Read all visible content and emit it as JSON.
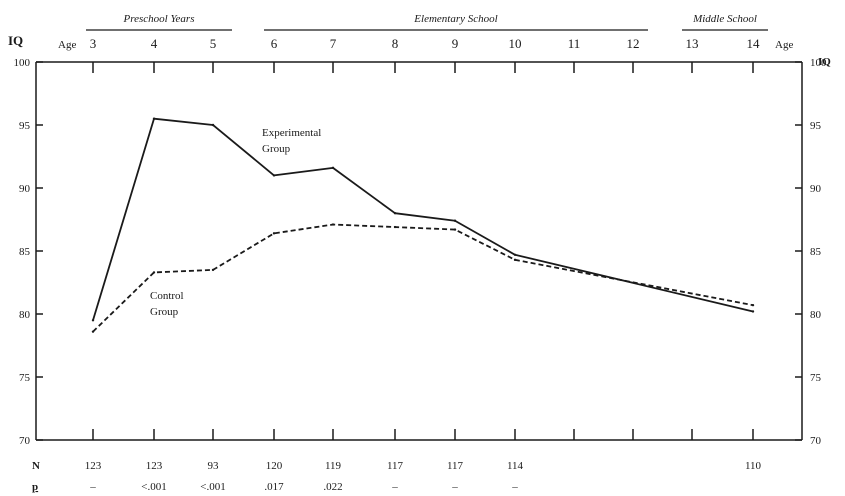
{
  "chart_data": {
    "type": "line",
    "x": [
      3,
      4,
      5,
      6,
      7,
      8,
      9,
      10,
      11,
      12,
      13,
      14
    ],
    "x_tick_labels": [
      "3",
      "4",
      "5",
      "6",
      "7",
      "8",
      "9",
      "10",
      "11",
      "12",
      "13",
      "14"
    ],
    "xlabel": "Age",
    "ylabel": "IQ",
    "ylabel_right": "IQ",
    "xlabel_right": "Age",
    "ylim": [
      70,
      100
    ],
    "y_ticks": [
      70,
      75,
      80,
      85,
      90,
      95,
      100
    ],
    "y_tick_labels": [
      "70",
      "75",
      "80",
      "85",
      "90",
      "95",
      "100"
    ],
    "grid": false,
    "phases": [
      {
        "label": "Preschool Years",
        "from": 3,
        "to": 5
      },
      {
        "label": "Elementary School",
        "from": 6,
        "to": 12
      },
      {
        "label": "Middle School",
        "from": 13,
        "to": 14
      }
    ],
    "series": [
      {
        "name": "Experimental Group",
        "name_lines": [
          "Experimental",
          "Group"
        ],
        "style": "solid",
        "x": [
          3,
          4,
          5,
          6,
          7,
          8,
          9,
          10,
          14
        ],
        "y": [
          79.5,
          95.5,
          95.0,
          91.0,
          91.6,
          88.0,
          87.4,
          84.7,
          80.2
        ]
      },
      {
        "name": "Control Group",
        "name_lines": [
          "Control",
          "Group"
        ],
        "style": "dashed",
        "x": [
          3,
          4,
          5,
          6,
          7,
          8,
          9,
          10,
          14
        ],
        "y": [
          78.6,
          83.3,
          83.5,
          86.4,
          87.1,
          86.9,
          86.7,
          84.3,
          80.7
        ]
      }
    ],
    "table_rows": [
      {
        "label": "N",
        "values": [
          {
            "x": 3,
            "text": "123"
          },
          {
            "x": 4,
            "text": "123"
          },
          {
            "x": 5,
            "text": "93"
          },
          {
            "x": 6,
            "text": "120"
          },
          {
            "x": 7,
            "text": "119"
          },
          {
            "x": 8,
            "text": "117"
          },
          {
            "x": 9,
            "text": "117"
          },
          {
            "x": 10,
            "text": "114"
          },
          {
            "x": 14,
            "text": "110"
          }
        ]
      },
      {
        "label": "p",
        "values": [
          {
            "x": 3,
            "text": "–"
          },
          {
            "x": 4,
            "text": "<.001"
          },
          {
            "x": 5,
            "text": "<.001"
          },
          {
            "x": 6,
            "text": ".017"
          },
          {
            "x": 7,
            "text": ".022"
          },
          {
            "x": 8,
            "text": "–"
          },
          {
            "x": 9,
            "text": "–"
          },
          {
            "x": 10,
            "text": "–"
          }
        ]
      }
    ],
    "colors": {
      "line": "#1a1a1a",
      "axis": "#1a1a1a"
    }
  }
}
